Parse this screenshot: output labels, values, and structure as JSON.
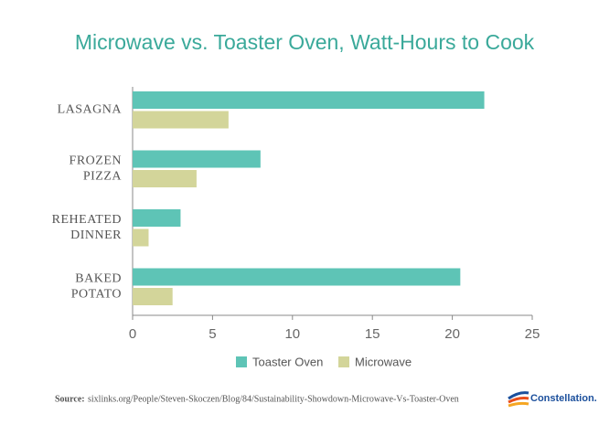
{
  "chart_data": {
    "type": "bar",
    "orientation": "horizontal",
    "title": "Microwave vs. Toaster Oven, Watt-Hours to Cook",
    "categories": [
      "LASAGNA",
      "FROZEN PIZZA",
      "REHEATED DINNER",
      "BAKED POTATO"
    ],
    "series": [
      {
        "name": "Toaster Oven",
        "color": "#5ec4b6",
        "values": [
          22,
          8,
          3,
          20.5
        ]
      },
      {
        "name": "Microwave",
        "color": "#d3d59a",
        "values": [
          6,
          4,
          1,
          2.5
        ]
      }
    ],
    "xlim": [
      0,
      25
    ],
    "xticks": [
      0,
      5,
      10,
      15,
      20,
      25
    ],
    "legend": "bottom",
    "source_label": "Source:",
    "source": "sixlinks.org/People/Steven-Skoczen/Blog/84/Sustainability-Showdown-Microwave-Vs-Toaster-Oven",
    "logo": "Constellation."
  }
}
